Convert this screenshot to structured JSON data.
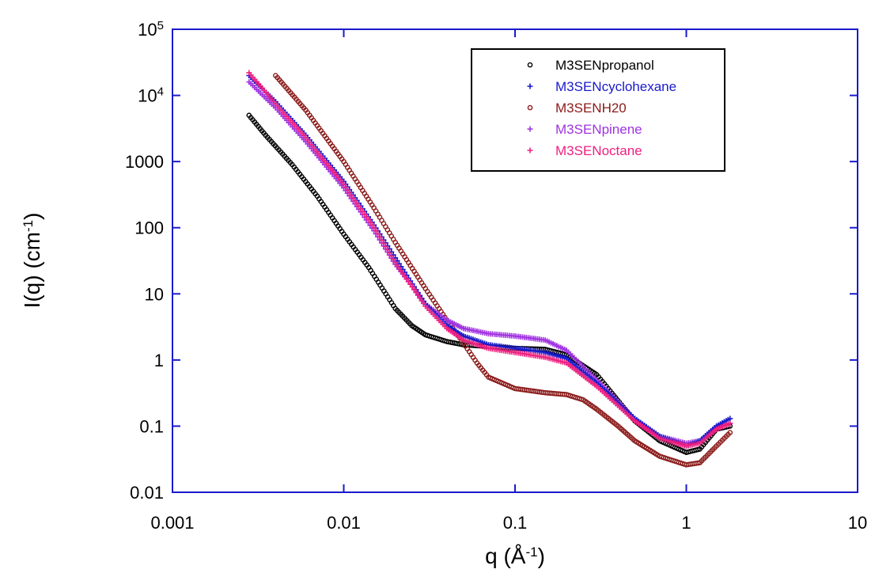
{
  "chart_data": {
    "type": "scatter",
    "xscale": "log",
    "yscale": "log",
    "xlim": [
      0.001,
      10
    ],
    "ylim": [
      0.01,
      100000
    ],
    "xlabel": {
      "main": "q   (Å",
      "sup": "-1",
      "end": ")"
    },
    "ylabel": {
      "main": "I(q)  (cm",
      "sup": "-1",
      "end": ")"
    },
    "xticks": [
      {
        "value": 0.001,
        "label": "0.001"
      },
      {
        "value": 0.01,
        "label": "0.01"
      },
      {
        "value": 0.1,
        "label": "0.1"
      },
      {
        "value": 1,
        "label": "1"
      },
      {
        "value": 10,
        "label": "10"
      }
    ],
    "yticks": [
      {
        "value": 0.01,
        "label": "0.01",
        "sup": ""
      },
      {
        "value": 0.1,
        "label": "0.1",
        "sup": ""
      },
      {
        "value": 1,
        "label": "1",
        "sup": ""
      },
      {
        "value": 10,
        "label": "10",
        "sup": ""
      },
      {
        "value": 100,
        "label": "100",
        "sup": ""
      },
      {
        "value": 1000,
        "label": "1000",
        "sup": ""
      },
      {
        "value": 10000,
        "label": "10",
        "sup": "4"
      },
      {
        "value": 100000,
        "label": "10",
        "sup": "5"
      }
    ],
    "axis_color": "#1a1acc",
    "legend_position": "top-right",
    "series": [
      {
        "name": "M3SENpropanol",
        "marker": "circle",
        "color": "#000000",
        "points": [
          [
            0.0028,
            5000
          ],
          [
            0.0035,
            2500
          ],
          [
            0.005,
            900
          ],
          [
            0.007,
            300
          ],
          [
            0.01,
            80
          ],
          [
            0.014,
            25
          ],
          [
            0.02,
            6
          ],
          [
            0.025,
            3.3
          ],
          [
            0.03,
            2.4
          ],
          [
            0.04,
            1.9
          ],
          [
            0.05,
            1.7
          ],
          [
            0.07,
            1.6
          ],
          [
            0.1,
            1.5
          ],
          [
            0.15,
            1.45
          ],
          [
            0.2,
            1.2
          ],
          [
            0.3,
            0.6
          ],
          [
            0.5,
            0.12
          ],
          [
            0.7,
            0.06
          ],
          [
            1.0,
            0.04
          ],
          [
            1.2,
            0.045
          ],
          [
            1.5,
            0.09
          ],
          [
            1.8,
            0.1
          ]
        ]
      },
      {
        "name": "M3SENcyclohexane",
        "marker": "plus",
        "color": "#1a1acc",
        "points": [
          [
            0.0028,
            20000
          ],
          [
            0.004,
            8000
          ],
          [
            0.006,
            2500
          ],
          [
            0.01,
            500
          ],
          [
            0.015,
            110
          ],
          [
            0.02,
            35
          ],
          [
            0.03,
            7
          ],
          [
            0.04,
            3.3
          ],
          [
            0.05,
            2.3
          ],
          [
            0.07,
            1.7
          ],
          [
            0.1,
            1.5
          ],
          [
            0.15,
            1.3
          ],
          [
            0.2,
            1.05
          ],
          [
            0.3,
            0.45
          ],
          [
            0.5,
            0.13
          ],
          [
            0.7,
            0.07
          ],
          [
            1.0,
            0.05
          ],
          [
            1.2,
            0.06
          ],
          [
            1.5,
            0.1
          ],
          [
            1.8,
            0.13
          ]
        ]
      },
      {
        "name": "M3SENH20",
        "marker": "circle",
        "color": "#8b1a1a",
        "points": [
          [
            0.004,
            20000
          ],
          [
            0.006,
            6000
          ],
          [
            0.01,
            1000
          ],
          [
            0.015,
            200
          ],
          [
            0.02,
            60
          ],
          [
            0.03,
            12
          ],
          [
            0.04,
            4
          ],
          [
            0.05,
            1.8
          ],
          [
            0.06,
            0.9
          ],
          [
            0.07,
            0.55
          ],
          [
            0.1,
            0.37
          ],
          [
            0.15,
            0.32
          ],
          [
            0.2,
            0.3
          ],
          [
            0.25,
            0.25
          ],
          [
            0.3,
            0.18
          ],
          [
            0.4,
            0.1
          ],
          [
            0.5,
            0.06
          ],
          [
            0.7,
            0.035
          ],
          [
            1.0,
            0.026
          ],
          [
            1.2,
            0.028
          ],
          [
            1.5,
            0.05
          ],
          [
            1.8,
            0.08
          ]
        ]
      },
      {
        "name": "M3SENpinene",
        "marker": "plus",
        "color": "#a033e0",
        "points": [
          [
            0.0028,
            16000
          ],
          [
            0.004,
            6500
          ],
          [
            0.006,
            2000
          ],
          [
            0.01,
            400
          ],
          [
            0.015,
            90
          ],
          [
            0.02,
            28
          ],
          [
            0.03,
            7
          ],
          [
            0.04,
            4
          ],
          [
            0.05,
            3
          ],
          [
            0.07,
            2.5
          ],
          [
            0.1,
            2.3
          ],
          [
            0.15,
            2.0
          ],
          [
            0.2,
            1.4
          ],
          [
            0.3,
            0.5
          ],
          [
            0.5,
            0.13
          ],
          [
            0.7,
            0.07
          ],
          [
            1.0,
            0.055
          ],
          [
            1.2,
            0.06
          ],
          [
            1.5,
            0.1
          ],
          [
            1.8,
            0.11
          ]
        ]
      },
      {
        "name": "M3SENoctane",
        "marker": "plus",
        "color": "#ee2080",
        "points": [
          [
            0.0028,
            22000
          ],
          [
            0.004,
            7500
          ],
          [
            0.006,
            2300
          ],
          [
            0.01,
            450
          ],
          [
            0.015,
            100
          ],
          [
            0.02,
            30
          ],
          [
            0.03,
            6.5
          ],
          [
            0.04,
            3
          ],
          [
            0.05,
            2
          ],
          [
            0.07,
            1.5
          ],
          [
            0.1,
            1.3
          ],
          [
            0.15,
            1.1
          ],
          [
            0.2,
            0.9
          ],
          [
            0.3,
            0.4
          ],
          [
            0.5,
            0.12
          ],
          [
            0.7,
            0.065
          ],
          [
            1.0,
            0.05
          ],
          [
            1.2,
            0.055
          ],
          [
            1.5,
            0.09
          ],
          [
            1.8,
            0.11
          ]
        ]
      }
    ]
  }
}
